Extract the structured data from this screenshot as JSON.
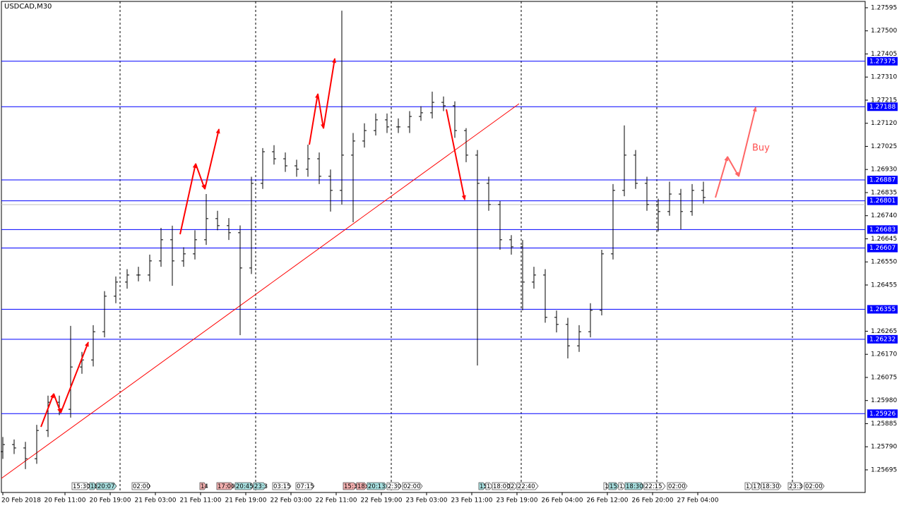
{
  "chart_data": {
    "type": "ohlc",
    "title": "USDCAD,M30",
    "color": "#000000",
    "x": [
      0,
      4,
      8,
      12,
      16,
      20,
      24,
      28,
      32,
      36,
      40,
      44,
      48,
      52,
      56,
      60,
      64,
      68,
      72,
      76,
      80,
      84,
      88,
      92,
      96,
      100,
      104,
      108,
      112,
      116,
      120,
      124,
      128,
      132,
      136,
      140,
      144,
      148,
      152,
      156,
      160,
      164,
      168,
      172,
      176,
      180,
      184,
      188,
      192,
      196,
      200,
      204,
      208,
      212,
      216,
      220,
      224,
      228,
      232,
      236,
      240,
      244,
      248
    ],
    "open": [
      1.2577,
      1.25799,
      1.25785,
      1.25741,
      1.25857,
      1.25973,
      1.25944,
      1.26118,
      1.26147,
      1.26263,
      1.26409,
      1.26467,
      1.26496,
      1.26496,
      1.26554,
      1.26641,
      1.26554,
      1.26583,
      1.26641,
      1.26728,
      1.26699,
      1.2667,
      1.26525,
      1.26873,
      1.27003,
      1.26974,
      1.26945,
      1.26931,
      1.26974,
      1.26902,
      1.26844,
      1.26989,
      1.27047,
      1.2709,
      1.27134,
      1.27105,
      1.27105,
      1.27148,
      1.27163,
      1.27206,
      1.27192,
      1.2709,
      1.26989,
      1.26873,
      1.26786,
      1.26641,
      1.26612,
      1.26467,
      1.26496,
      1.26322,
      1.26293,
      1.26205,
      1.26263,
      1.26351,
      1.26583,
      1.26844,
      1.26989,
      1.26873,
      1.26786,
      1.26757,
      1.26829,
      1.26757,
      1.26844
    ],
    "high": [
      1.2583,
      1.2582,
      1.2581,
      1.2588,
      1.26,
      1.26,
      1.26287,
      1.2618,
      1.2629,
      1.2643,
      1.2649,
      1.2652,
      1.2653,
      1.2658,
      1.2669,
      1.26699,
      1.2661,
      1.2668,
      1.26829,
      1.2676,
      1.2673,
      1.267,
      1.269,
      1.27018,
      1.2703,
      1.27,
      1.2697,
      1.27032,
      1.27,
      1.2693,
      1.27583,
      1.2708,
      1.2712,
      1.2716,
      1.2716,
      1.2714,
      1.2717,
      1.2719,
      1.2725,
      1.2723,
      1.2721,
      1.271,
      1.2701,
      1.269,
      1.268,
      1.2666,
      1.2664,
      1.2653,
      1.2652,
      1.2635,
      1.2632,
      1.2629,
      1.2638,
      1.266,
      1.2687,
      1.27111,
      1.2701,
      1.269,
      1.2681,
      1.2688,
      1.2685,
      1.2687,
      1.2688
    ],
    "low": [
      1.2574,
      1.2576,
      1.25698,
      1.2572,
      1.2583,
      1.2592,
      1.2591,
      1.2609,
      1.2612,
      1.2624,
      1.2638,
      1.2644,
      1.2647,
      1.2647,
      1.2653,
      1.26452,
      1.2653,
      1.2656,
      1.2662,
      1.2668,
      1.2664,
      1.26249,
      1.265,
      1.2685,
      1.2695,
      1.2692,
      1.269,
      1.269,
      1.2687,
      1.26757,
      1.26786,
      1.26713,
      1.2702,
      1.2707,
      1.2708,
      1.2708,
      1.2708,
      1.2713,
      1.2714,
      1.2717,
      1.2706,
      1.2696,
      1.26124,
      1.2676,
      1.266,
      1.2658,
      1.26351,
      1.2644,
      1.263,
      1.2626,
      1.26153,
      1.2618,
      1.2624,
      1.2633,
      1.2656,
      1.2682,
      1.2685,
      1.2676,
      1.26675,
      1.2674,
      1.26684,
      1.2674,
      1.2679
    ],
    "close": [
      1.25799,
      1.25785,
      1.25741,
      1.25857,
      1.25973,
      1.25944,
      1.26118,
      1.26147,
      1.26263,
      1.26409,
      1.26467,
      1.26496,
      1.26496,
      1.26554,
      1.26641,
      1.26554,
      1.26583,
      1.26641,
      1.26728,
      1.26699,
      1.2667,
      1.26525,
      1.26873,
      1.27003,
      1.26974,
      1.26945,
      1.26931,
      1.26974,
      1.26902,
      1.26844,
      1.26989,
      1.27047,
      1.2709,
      1.27134,
      1.27105,
      1.27105,
      1.27148,
      1.27163,
      1.27206,
      1.27192,
      1.2709,
      1.26989,
      1.26873,
      1.26786,
      1.26641,
      1.26612,
      1.26467,
      1.26496,
      1.26322,
      1.26293,
      1.26205,
      1.26263,
      1.26351,
      1.26583,
      1.26844,
      1.26989,
      1.26873,
      1.26786,
      1.26757,
      1.26829,
      1.26757,
      1.26844,
      1.26815
    ],
    "xlim": [
      -0.5,
      305.25
    ],
    "ylim": [
      1.25602,
      1.27621
    ],
    "xticks": [
      {
        "value": 0,
        "label": "20 Feb 2018"
      },
      {
        "value": 22,
        "label": "20 Feb 11:00"
      },
      {
        "value": 38,
        "label": "20 Feb 19:00"
      },
      {
        "value": 54,
        "label": "21 Feb 03:00"
      },
      {
        "value": 70,
        "label": "21 Feb 11:00"
      },
      {
        "value": 86,
        "label": "21 Feb 19:00"
      },
      {
        "value": 102,
        "label": "22 Feb 03:00"
      },
      {
        "value": 118,
        "label": "22 Feb 11:00"
      },
      {
        "value": 134,
        "label": "22 Feb 19:00"
      },
      {
        "value": 150,
        "label": "23 Feb 03:00"
      },
      {
        "value": 166,
        "label": "23 Feb 11:00"
      },
      {
        "value": 182,
        "label": "23 Feb 19:00"
      },
      {
        "value": 198,
        "label": "26 Feb 04:00"
      },
      {
        "value": 214,
        "label": "26 Feb 12:00"
      },
      {
        "value": 230,
        "label": "26 Feb 20:00"
      },
      {
        "value": 246,
        "label": "27 Feb 04:00"
      }
    ],
    "yticks": [
      1.27595,
      {
        "value": 1.275,
        "label": "1.27500"
      },
      1.27405,
      {
        "value": 1.2731,
        "label": "1.27310"
      },
      1.27215,
      {
        "value": 1.2712,
        "label": "1.27120"
      },
      1.27025,
      {
        "value": 1.2693,
        "label": "1.26930"
      },
      1.26835,
      {
        "value": 1.2674,
        "label": "1.26740"
      },
      1.26645,
      {
        "value": 1.2655,
        "label": "1.26550"
      },
      1.26455,
      1.26265,
      {
        "value": 1.2617,
        "label": "1.26170"
      },
      1.26075,
      {
        "value": 1.2598,
        "label": "1.25980"
      },
      1.25885,
      {
        "value": 1.2579,
        "label": "1.25790"
      },
      1.25695
    ],
    "levels": [
      1.27375,
      1.27188,
      1.26887,
      1.26801,
      1.26683,
      1.26607,
      1.26355,
      1.26232,
      1.25926
    ],
    "level_color": "#0000ff",
    "annotation": "Buy",
    "events": [
      {
        "label": "15:30",
        "color": "#ffffff"
      },
      {
        "label": "18",
        "color": "#a8e0e0"
      },
      {
        "label": "20:07",
        "color": "#a8e0e0"
      },
      {
        "label": "02:00",
        "color": "#ffffff"
      },
      {
        "label": "14",
        "color": "#f4b0b0"
      },
      {
        "label": "17:00",
        "color": "#f4b0b0"
      },
      {
        "label": "20:45",
        "color": "#a8e0e0"
      },
      {
        "label": "23:3",
        "color": "#a8e0e0"
      },
      {
        "label": "03:15",
        "color": "#ffffff"
      },
      {
        "label": "07:15",
        "color": "#ffffff"
      },
      {
        "label": "15:3",
        "color": "#f4b0b0"
      },
      {
        "label": "18:",
        "color": "#f4b0b0"
      },
      {
        "label": "20:13",
        "color": "#a8e0e0"
      },
      {
        "label": "2:30",
        "color": "#ffffff"
      },
      {
        "label": "02:00",
        "color": "#ffffff"
      },
      {
        "label": "15",
        "color": "#a8e0e0"
      },
      {
        "label": "1",
        "color": "#ffffff"
      },
      {
        "label": "18:00",
        "color": "#ffffff"
      },
      {
        "label": "2",
        "color": "#ffffff"
      },
      {
        "label": "22:40",
        "color": "#ffffff"
      },
      {
        "label": "1",
        "color": "#ffffff"
      },
      {
        "label": "15",
        "color": "#a8e0e0"
      },
      {
        "label": "1",
        "color": "#ffffff"
      },
      {
        "label": "18:30",
        "color": "#a8e0e0"
      },
      {
        "label": "22:15",
        "color": "#ffffff"
      },
      {
        "label": "02:00",
        "color": "#ffffff"
      },
      {
        "label": "1",
        "color": "#ffffff"
      },
      {
        "label": "17",
        "color": "#ffffff"
      },
      {
        "label": "18:30",
        "color": "#ffffff"
      },
      {
        "label": "23:3",
        "color": "#ffffff"
      },
      {
        "label": "02:00",
        "color": "#ffffff"
      }
    ]
  }
}
